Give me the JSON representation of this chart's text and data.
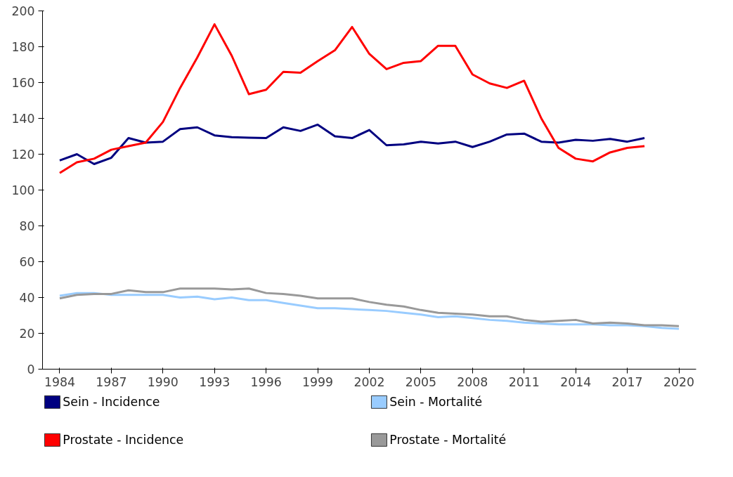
{
  "chart_data": {
    "type": "line",
    "x": [
      1984,
      1985,
      1986,
      1987,
      1988,
      1989,
      1990,
      1991,
      1992,
      1993,
      1994,
      1995,
      1996,
      1997,
      1998,
      1999,
      2000,
      2001,
      2002,
      2003,
      2004,
      2005,
      2006,
      2007,
      2008,
      2009,
      2010,
      2011,
      2012,
      2013,
      2014,
      2015,
      2016,
      2017,
      2018,
      2019,
      2020
    ],
    "series": [
      {
        "name": "Sein - Incidence",
        "color": "#000080",
        "values": [
          116.5,
          120,
          114.5,
          118,
          129,
          126.5,
          127,
          134,
          135,
          130.5,
          129.5,
          129.2,
          129,
          135,
          133,
          136.5,
          130,
          129,
          133.5,
          125,
          125.5,
          127,
          126,
          127,
          124,
          127,
          131,
          131.5,
          127,
          126.5,
          128,
          127.5,
          128.5,
          127,
          129,
          null,
          null
        ]
      },
      {
        "name": "Sein - Mortalité",
        "color": "#99ccff",
        "values": [
          41,
          42.5,
          42.5,
          41.5,
          41.5,
          41.5,
          41.5,
          40,
          40.5,
          39,
          40,
          38.5,
          38.5,
          37,
          35.5,
          34,
          34,
          33.5,
          33,
          32.5,
          31.5,
          30.5,
          29,
          29.5,
          28.5,
          27.5,
          27,
          26,
          25.5,
          25,
          25,
          25,
          24.5,
          24.5,
          24,
          23,
          22.5
        ]
      },
      {
        "name": "Prostate - Incidence",
        "color": "#ff0000",
        "values": [
          109.5,
          115.5,
          117.5,
          122.5,
          124.5,
          126.5,
          138,
          157,
          174,
          192.5,
          175,
          153.5,
          156,
          166,
          165.5,
          172,
          178,
          191,
          176,
          167.5,
          171,
          172,
          180.5,
          180.5,
          164.5,
          159.5,
          157,
          161,
          140,
          123.5,
          117.5,
          116,
          121,
          123.5,
          124.5,
          null,
          null
        ]
      },
      {
        "name": "Prostate - Mortalité",
        "color": "#999999",
        "values": [
          39.5,
          41.5,
          42,
          42,
          44,
          43,
          43,
          45,
          45,
          45,
          44.5,
          45,
          42.5,
          42,
          41,
          39.5,
          39.5,
          39.5,
          37.5,
          36,
          35,
          33,
          31.5,
          31,
          30.5,
          29.5,
          29.5,
          27.5,
          26.5,
          27,
          27.5,
          25.5,
          26,
          25.5,
          24.5,
          24.5,
          24
        ]
      }
    ],
    "xlim": [
      1983,
      2021
    ],
    "xticks": [
      1984,
      1987,
      1990,
      1993,
      1996,
      1999,
      2002,
      2005,
      2008,
      2011,
      2014,
      2017,
      2020
    ],
    "ylim": [
      0,
      200
    ],
    "yticks": [
      0,
      20,
      40,
      60,
      80,
      100,
      120,
      140,
      160,
      180,
      200
    ],
    "grid": false,
    "legend": "bottom",
    "line_style": "solid",
    "marker": "none"
  }
}
